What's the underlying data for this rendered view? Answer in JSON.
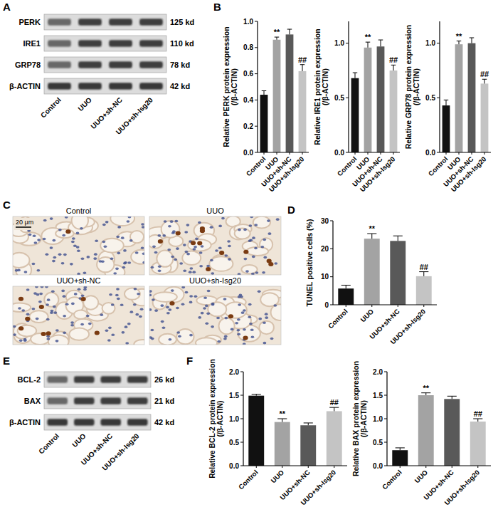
{
  "panel_labels": [
    "A",
    "B",
    "C",
    "D",
    "E",
    "F"
  ],
  "blots": [
    {
      "lanes": [
        "Control",
        "UUO",
        "UUO+sh-NC",
        "UUO+sh-Isg20"
      ],
      "rows": [
        {
          "name": "PERK",
          "size": "125 kd"
        },
        {
          "name": "IRE1",
          "size": "110 kd"
        },
        {
          "name": "GRP78",
          "size": "78 kd"
        },
        {
          "name": "β-ACTIN",
          "size": "42 kd"
        }
      ]
    },
    {
      "lanes": [
        "Control",
        "UUO",
        "UUO+sh-NC",
        "UUO+sh-Isg20"
      ],
      "rows": [
        {
          "name": "BCL-2",
          "size": "26 kd"
        },
        {
          "name": "BAX",
          "size": "21 kd"
        },
        {
          "name": "β-ACTIN",
          "size": "42 kd"
        }
      ]
    }
  ],
  "images": {
    "labels": [
      "Control",
      "UUO",
      "UUO+sh-NC",
      "UUO+sh-Isg20"
    ],
    "scale_bar": "20 μm"
  },
  "chart_data": [
    {
      "type": "bar",
      "y_label": [
        "Relative PERK protein expression",
        "(/β-ACTIN)"
      ],
      "categories": [
        "Control",
        "UUO",
        "UUO+sh-NC",
        "UUO+sh-Isg20"
      ],
      "values": [
        0.44,
        0.86,
        0.9,
        0.62
      ],
      "errors": [
        0.03,
        0.02,
        0.04,
        0.05
      ],
      "annotations": [
        null,
        "**",
        null,
        "##"
      ],
      "colors": [
        "#111111",
        "#a3a3a3",
        "#595959",
        "#c4c4c4"
      ],
      "ylim": [
        0,
        1
      ],
      "yticks": [
        {
          "value": 0,
          "label": "0.0"
        },
        0.2,
        0.4,
        0.6,
        0.8,
        {
          "value": 1,
          "label": "1.0"
        }
      ],
      "grid": false
    },
    {
      "type": "bar",
      "y_label": [
        "Relative IRE1 protein expression",
        "(/β-ACTIN)"
      ],
      "categories": [
        "Control",
        "UUO",
        "UUO+sh-NC",
        "UUO+sh-Isg20"
      ],
      "values": [
        0.68,
        0.96,
        0.97,
        0.75
      ],
      "errors": [
        0.05,
        0.05,
        0.06,
        0.05
      ],
      "annotations": [
        null,
        "**",
        null,
        "##"
      ],
      "colors": [
        "#111111",
        "#a3a3a3",
        "#595959",
        "#c4c4c4"
      ],
      "ylim": [
        0,
        1.2
      ],
      "yticks": [
        {
          "value": 0,
          "label": "0.0"
        },
        0.5,
        {
          "value": 1,
          "label": "1.0"
        }
      ],
      "grid": false
    },
    {
      "type": "bar",
      "y_label": [
        "Relative GRP78 protein expression",
        "(/β-ACTIN)"
      ],
      "categories": [
        "Control",
        "UUO",
        "UUO+sh-NC",
        "UUO+sh-Isg20"
      ],
      "values": [
        0.43,
        0.99,
        1.0,
        0.63
      ],
      "errors": [
        0.05,
        0.03,
        0.05,
        0.04
      ],
      "annotations": [
        null,
        "**",
        null,
        "##"
      ],
      "colors": [
        "#111111",
        "#a3a3a3",
        "#595959",
        "#c4c4c4"
      ],
      "ylim": [
        0,
        1.2
      ],
      "yticks": [
        {
          "value": 0,
          "label": "0.0"
        },
        0.5,
        {
          "value": 1,
          "label": "1.0"
        }
      ],
      "grid": false
    },
    {
      "type": "bar",
      "y_label": [
        "TUNEL positive cells (%)"
      ],
      "categories": [
        "Control",
        "UUO",
        "UUO+sh-NC",
        "UUO+sh-Isg20"
      ],
      "values": [
        5.8,
        23.6,
        22.8,
        10.2
      ],
      "errors": [
        1.2,
        1.8,
        1.8,
        1.6
      ],
      "annotations": [
        null,
        "**",
        null,
        "##"
      ],
      "colors": [
        "#111111",
        "#a3a3a3",
        "#595959",
        "#c4c4c4"
      ],
      "ylim": [
        0,
        30
      ],
      "yticks": [
        0,
        10,
        20,
        30
      ],
      "grid": false
    },
    {
      "type": "bar",
      "y_label": [
        "Relative BCL-2 protein expression",
        "(/β-ACTIN)"
      ],
      "categories": [
        "Control",
        "UUO",
        "UUO+sh-NC",
        "UUO+sh-Isg20"
      ],
      "values": [
        1.49,
        0.93,
        0.86,
        1.16
      ],
      "errors": [
        0.03,
        0.07,
        0.05,
        0.08
      ],
      "annotations": [
        null,
        "**",
        null,
        "##"
      ],
      "colors": [
        "#111111",
        "#a3a3a3",
        "#595959",
        "#c4c4c4"
      ],
      "ylim": [
        0,
        2
      ],
      "yticks": [
        {
          "value": 0,
          "label": "0.0"
        },
        0.5,
        {
          "value": 1,
          "label": "1.0"
        },
        1.5,
        {
          "value": 2,
          "label": "2.0"
        }
      ],
      "grid": false
    },
    {
      "type": "bar",
      "y_label": [
        "Relative BAX protein expression",
        "(/β-ACTIN)"
      ],
      "categories": [
        "Control",
        "UUO",
        "UUO+sh-NC",
        "UUO+sh-Isg20"
      ],
      "values": [
        0.33,
        1.5,
        1.42,
        0.94
      ],
      "errors": [
        0.05,
        0.05,
        0.06,
        0.06
      ],
      "annotations": [
        null,
        "**",
        null,
        "##"
      ],
      "colors": [
        "#111111",
        "#a3a3a3",
        "#595959",
        "#c4c4c4"
      ],
      "ylim": [
        0,
        2
      ],
      "yticks": [
        {
          "value": 0,
          "label": "0.0"
        },
        0.5,
        {
          "value": 1,
          "label": "1.0"
        },
        1.5,
        {
          "value": 2,
          "label": "2.0"
        }
      ],
      "grid": false
    }
  ]
}
